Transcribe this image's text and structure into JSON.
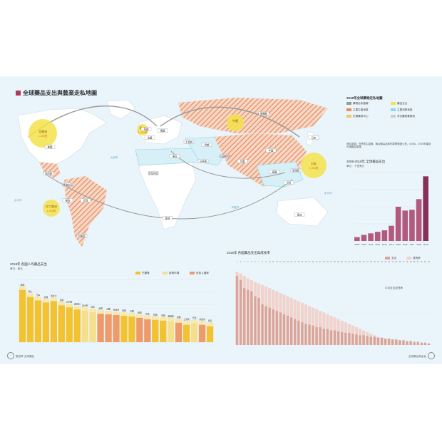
{
  "map": {
    "title": "全球藥品支出與藝業走私地圖",
    "bubbles": [
      {
        "label": "北美洲",
        "value": "1,200億"
      },
      {
        "label": "拉丁美洲",
        "value": "1,400億"
      },
      {
        "label": "歐洲",
        "value": "1,400億"
      },
      {
        "label": "中國",
        "value": ""
      },
      {
        "label": "日本",
        "value": "1,300億"
      }
    ],
    "region_labels": [
      "俄羅斯",
      "美國",
      "墨西哥",
      "巴西",
      "印度",
      "中國",
      "日本",
      "澳洲",
      "南非",
      "奈及利亞",
      "埃及",
      "土耳其",
      "伊朗",
      "英國",
      "法國",
      "德國",
      "阿根廷",
      "哥倫比亞",
      "秘魯",
      "沙烏地",
      "巴基斯坦",
      "泰國",
      "印尼",
      "菲律賓"
    ],
    "ocean_labels": [
      "大西洋",
      "太平洋",
      "印度洋",
      "太平洋"
    ]
  },
  "legend": {
    "title": "2019年全球藥物走私地圖",
    "items": [
      {
        "label": "藥物走私路線",
        "color": "#999999"
      },
      {
        "label": "藥品支出",
        "color": "#f5e24a"
      },
      {
        "label": "主要生產地區",
        "color": "#e98a5b"
      },
      {
        "label": "主要消費地區",
        "color": "#8fd6e8"
      },
      {
        "label": "仿冒藥物中心",
        "color": "#f2c56b"
      },
      {
        "label": "非法藥物集散地",
        "color": "#cccccc"
      }
    ],
    "note": "資料來源：世界衛生組織、聯合國毒品和犯罪問題辦公室、IQVIA，2019年藥品市場報告整理。"
  },
  "chart_right": {
    "title": "2009-2019年 全球藥品支出",
    "subtitle": "單位：十億美元",
    "chart_data": {
      "type": "bar",
      "categories": [
        "2009",
        "2010",
        "2011",
        "2012",
        "2013",
        "2014",
        "2015",
        "2016",
        "2017",
        "2018",
        "2019"
      ],
      "values": [
        5,
        8,
        10,
        12,
        14,
        20,
        45,
        40,
        41,
        55,
        85
      ],
      "ylim": [
        0,
        90
      ]
    }
  },
  "chart_bottom_left": {
    "title": "2018年 各國人均藥品支出",
    "subtitle": "單位：美元",
    "legend": [
      {
        "label": "已開發",
        "color": "#f2c230"
      },
      {
        "label": "新興市場",
        "color": "#f6df8c"
      },
      {
        "label": "低收入國家",
        "color": "#ee9a6a"
      }
    ],
    "chart_data": {
      "type": "bar",
      "categories": [
        "美國",
        "瑞士",
        "日本",
        "德國",
        "加拿大",
        "法國",
        "比利時",
        "奧地利",
        "義大利",
        "澳洲",
        "英國",
        "荷蘭",
        "西班牙",
        "瑞典",
        "芬蘭",
        "挪威",
        "丹麥",
        "韓國",
        "中國",
        "俄羅斯",
        "波蘭",
        "土耳其",
        "巴西",
        "墨西哥",
        "印度"
      ],
      "series": [
        {
          "values": [
            80,
            70,
            65,
            62,
            64,
            58,
            55,
            52,
            50,
            48,
            46,
            45,
            44,
            43,
            42,
            40,
            38,
            37,
            36,
            35,
            33,
            30,
            32,
            30,
            28
          ]
        }
      ],
      "ylim": [
        0,
        90
      ]
    }
  },
  "chart_bottom_right": {
    "title": "2019年 各國藥品支出與成長率",
    "legend": [
      {
        "label": "支出",
        "color": "#d9a59a"
      },
      {
        "label": "成長率",
        "color": "#f0d3cc"
      }
    ],
    "annotation": "平均支出成長率",
    "chart_data": {
      "type": "bar",
      "categories": [
        "1",
        "2",
        "3",
        "4",
        "5",
        "6",
        "7",
        "8",
        "9",
        "10",
        "11",
        "12",
        "13",
        "14",
        "15",
        "16",
        "17",
        "18",
        "19",
        "20",
        "21",
        "22",
        "23",
        "24",
        "25",
        "26",
        "27",
        "28",
        "29",
        "30",
        "31",
        "32",
        "33",
        "34",
        "35",
        "36",
        "37",
        "38",
        "39",
        "40",
        "41",
        "42",
        "43",
        "44",
        "45",
        "46",
        "47",
        "48",
        "49",
        "50",
        "51",
        "52",
        "53",
        "54"
      ],
      "series": [
        {
          "name": "支出",
          "values": [
            85,
            80,
            70,
            68,
            66,
            60,
            58,
            50,
            48,
            46,
            44,
            42,
            40,
            38,
            36,
            34,
            32,
            30,
            28,
            26,
            25,
            24,
            22,
            22,
            20,
            20,
            18,
            18,
            17,
            16,
            15,
            15,
            14,
            13,
            12,
            12,
            11,
            10,
            10,
            9,
            9,
            8,
            8,
            7,
            7,
            6,
            6,
            5,
            5,
            4,
            4,
            3,
            3,
            2
          ]
        },
        {
          "name": "成長率",
          "values": [
            90,
            88,
            85,
            82,
            80,
            78,
            76,
            74,
            72,
            70,
            68,
            66,
            64,
            62,
            60,
            58,
            56,
            54,
            52,
            50,
            48,
            46,
            44,
            42,
            40,
            38,
            36,
            34,
            32,
            30,
            28,
            26,
            24,
            22,
            20,
            18,
            16,
            14,
            12,
            10,
            9,
            8,
            7,
            6,
            5,
            4,
            3,
            2,
            2,
            1,
            1,
            1,
            1,
            1
          ]
        }
      ],
      "ylim": [
        0,
        100
      ]
    }
  },
  "folio": {
    "left": "第四章 全球藥品",
    "right": "全球藥品與走私"
  }
}
